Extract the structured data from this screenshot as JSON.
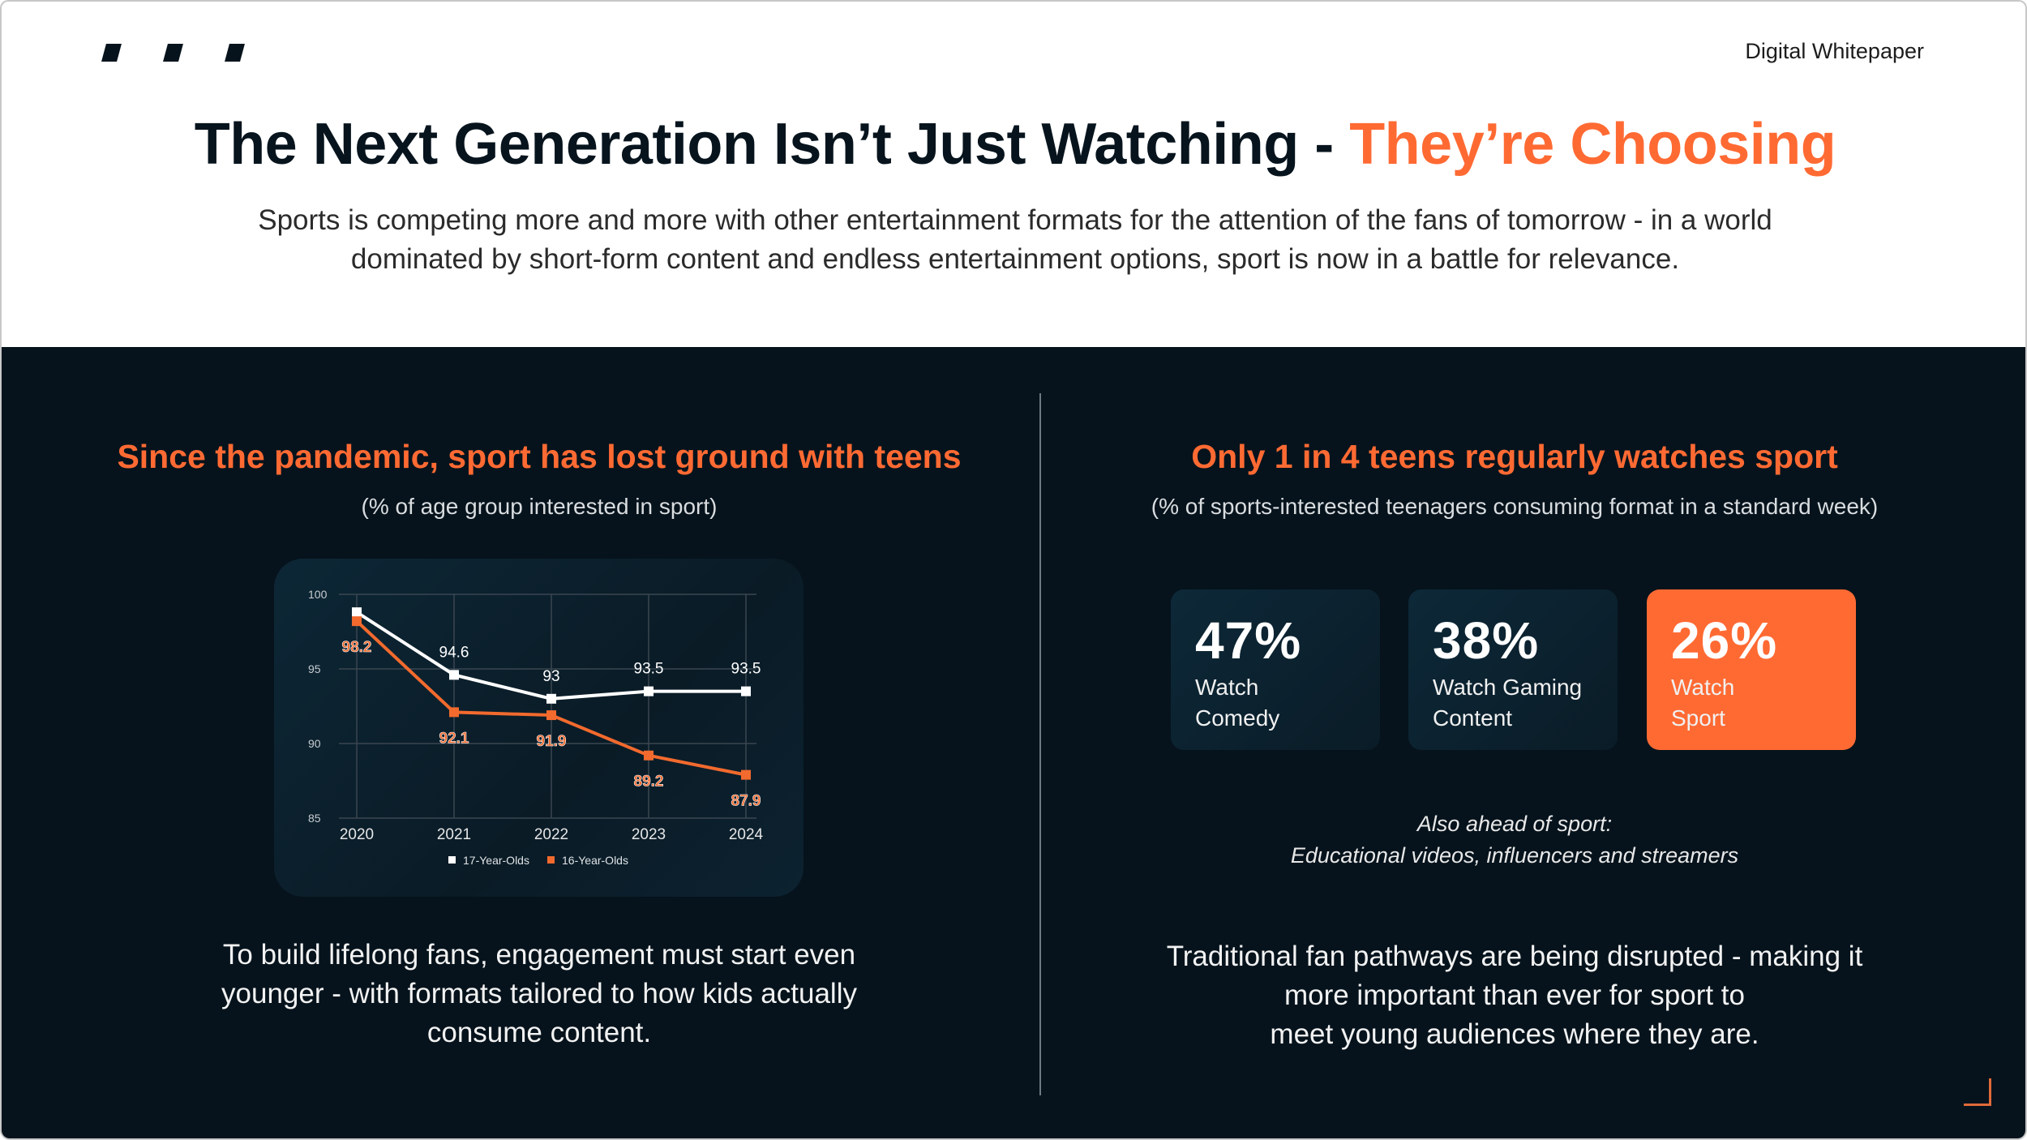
{
  "header": {
    "label": "Digital Whitepaper",
    "title_main": "The Next Generation Isn’t Just Watching - ",
    "title_highlight": "They’re Choosing",
    "subtitle": "Sports is competing more and more with other entertainment formats for the attention of the fans of tomorrow - in a world dominated by short-form content and endless entertainment options, sport is now in a battle for relevance."
  },
  "colors": {
    "accent": "#ff6a33",
    "dark_bg": "#06131c",
    "card_bg": "#0b2230"
  },
  "left": {
    "heading": "Since the pandemic, sport has lost ground with teens",
    "subheading": "(% of age group interested in sport)",
    "body_lines": [
      "To build lifelong fans, engagement must start even",
      "younger - with formats tailored to how kids actually",
      "consume content."
    ]
  },
  "chart_data": {
    "type": "line",
    "categories": [
      "2020",
      "2021",
      "2022",
      "2023",
      "2024"
    ],
    "ylim": [
      85,
      100
    ],
    "yticks": [
      "85",
      "90",
      "95",
      "100"
    ],
    "grid": true,
    "legend": "bottom",
    "series": [
      {
        "name": "17-Year-Olds",
        "color": "#ffffff",
        "values": [
          98.8,
          94.6,
          93,
          93.5,
          93.5
        ],
        "labels": [
          "",
          "94.6",
          "93",
          "93.5",
          "93.5"
        ]
      },
      {
        "name": "16-Year-Olds",
        "color": "#f26a2e",
        "values": [
          98.2,
          92.1,
          91.9,
          89.2,
          87.9
        ],
        "labels": [
          "98.2",
          "92.1",
          "91.9",
          "89.2",
          "87.9"
        ]
      }
    ]
  },
  "right": {
    "heading": "Only 1 in 4 teens regularly watches sport",
    "subheading": "(% of sports-interested teenagers consuming format in a standard week)",
    "cards": [
      {
        "value": "47%",
        "line1": "Watch",
        "line2": "Comedy"
      },
      {
        "value": "38%",
        "line1": "Watch Gaming",
        "line2": "Content"
      },
      {
        "value": "26%",
        "line1": "Watch",
        "line2": "Sport"
      }
    ],
    "note_line1": "Also ahead of sport:",
    "note_line2": "Educational videos, influencers and streamers",
    "body_lines": [
      "Traditional fan pathways are being disrupted - making it",
      "more important than ever for sport to",
      "meet young audiences where they are."
    ]
  }
}
